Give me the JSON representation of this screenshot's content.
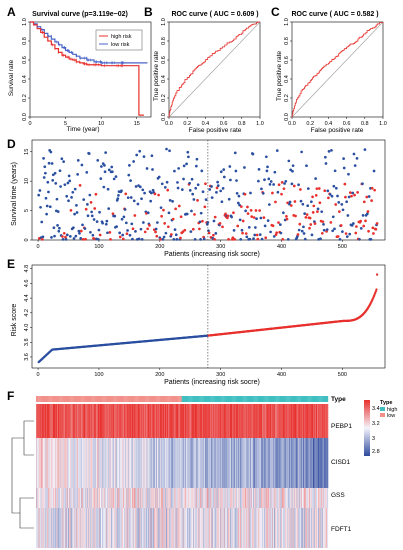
{
  "colors": {
    "high": "#e8302d",
    "low": "#2a4fa0",
    "km_low": "#4a63c8",
    "roc": "#e8302d",
    "diag": "#9a9a9a",
    "heat_high": "#e8302d",
    "heat_mid": "#f4f4fb",
    "heat_low": "#2e4a9c",
    "type_high": "#40bfc1",
    "type_low": "#f2908a",
    "cutoff": "#333333"
  },
  "chart_data": [
    {
      "panel_label": "A",
      "type": "line",
      "title": "Survival curve (p=3.119e−02)",
      "xlabel": "Time (year)",
      "ylabel": "Survival rate",
      "xlim": [
        0,
        17
      ],
      "ylim": [
        0,
        1
      ],
      "x_ticks": [
        "0",
        "5",
        "10",
        "15"
      ],
      "y_ticks": [
        "0.0",
        "0.2",
        "0.4",
        "0.6",
        "0.8",
        "1.0"
      ],
      "legend": [
        "high risk",
        "low risk"
      ],
      "legend_position": "top-right",
      "series": [
        {
          "name": "high risk",
          "x": [
            0,
            0.5,
            1,
            1.5,
            2,
            2.5,
            3,
            3.5,
            4,
            4.5,
            5,
            5.5,
            6,
            6.5,
            7,
            7.5,
            8,
            8.5,
            9,
            10,
            11,
            12,
            13,
            14,
            15,
            15.3,
            15.3,
            16
          ],
          "y": [
            1.0,
            0.97,
            0.93,
            0.89,
            0.84,
            0.8,
            0.76,
            0.72,
            0.68,
            0.65,
            0.63,
            0.61,
            0.6,
            0.58,
            0.57,
            0.56,
            0.55,
            0.55,
            0.55,
            0.54,
            0.54,
            0.54,
            0.54,
            0.54,
            0.54,
            0.54,
            0.02,
            0.02
          ]
        },
        {
          "name": "low risk",
          "x": [
            0,
            0.5,
            1,
            1.5,
            2,
            2.5,
            3,
            3.5,
            4,
            4.5,
            5,
            5.5,
            6,
            6.5,
            7,
            8,
            9,
            10,
            11,
            12,
            13,
            14,
            16.5
          ],
          "y": [
            1.0,
            0.98,
            0.95,
            0.92,
            0.88,
            0.85,
            0.82,
            0.79,
            0.76,
            0.73,
            0.7,
            0.68,
            0.66,
            0.64,
            0.62,
            0.6,
            0.58,
            0.57,
            0.57,
            0.57,
            0.57,
            0.57,
            0.57
          ]
        }
      ]
    },
    {
      "panel_label": "B",
      "type": "line",
      "title": "ROC curve ( AUC =  0.609 )",
      "xlabel": "False positive rate",
      "ylabel": "True positive rate",
      "xlim": [
        0,
        1
      ],
      "ylim": [
        0,
        1
      ],
      "x_ticks": [
        "0.0",
        "0.2",
        "0.4",
        "0.6",
        "0.8",
        "1.0"
      ],
      "y_ticks": [
        "0.0",
        "0.2",
        "0.4",
        "0.6",
        "0.8",
        "1.0"
      ],
      "series": [
        {
          "x": [
            0,
            0.02,
            0.05,
            0.1,
            0.15,
            0.2,
            0.25,
            0.3,
            0.35,
            0.4,
            0.45,
            0.5,
            0.55,
            0.6,
            0.65,
            0.7,
            0.75,
            0.8,
            0.85,
            0.9,
            0.95,
            1.0
          ],
          "y": [
            0,
            0.08,
            0.18,
            0.27,
            0.34,
            0.4,
            0.45,
            0.5,
            0.55,
            0.59,
            0.63,
            0.67,
            0.7,
            0.73,
            0.77,
            0.8,
            0.84,
            0.88,
            0.92,
            0.95,
            0.98,
            1.0
          ]
        }
      ]
    },
    {
      "panel_label": "C",
      "type": "line",
      "title": "ROC curve ( AUC =  0.582 )",
      "xlabel": "False positive rate",
      "ylabel": "True positive rate",
      "xlim": [
        0,
        1
      ],
      "ylim": [
        0,
        1
      ],
      "x_ticks": [
        "0.0",
        "0.2",
        "0.4",
        "0.6",
        "0.8",
        "1.0"
      ],
      "y_ticks": [
        "0.0",
        "0.2",
        "0.4",
        "0.6",
        "0.8",
        "1.0"
      ],
      "series": [
        {
          "x": [
            0,
            0.02,
            0.05,
            0.1,
            0.15,
            0.2,
            0.25,
            0.3,
            0.35,
            0.4,
            0.45,
            0.5,
            0.55,
            0.6,
            0.65,
            0.7,
            0.75,
            0.8,
            0.85,
            0.9,
            0.95,
            1.0
          ],
          "y": [
            0,
            0.07,
            0.16,
            0.25,
            0.31,
            0.37,
            0.42,
            0.47,
            0.52,
            0.56,
            0.6,
            0.64,
            0.68,
            0.72,
            0.76,
            0.79,
            0.83,
            0.87,
            0.91,
            0.94,
            0.97,
            1.0
          ]
        }
      ]
    },
    {
      "panel_label": "D",
      "type": "scatter",
      "ylabel": "Survival time (years)",
      "xlabel": "Patients (increasing risk socre)",
      "xlim": [
        -10,
        570
      ],
      "ylim": [
        0,
        17
      ],
      "x_ticks": [
        "0",
        "100",
        "200",
        "300",
        "400",
        "500"
      ],
      "y_ticks": [
        "0",
        "5",
        "10",
        "15"
      ],
      "cutoff_x": 279,
      "n_patients": 557
    },
    {
      "panel_label": "E",
      "type": "scatter",
      "ylabel": "Risk score",
      "xlabel": "Patients (increasing risk socre)",
      "xlim": [
        -10,
        570
      ],
      "ylim": [
        3.45,
        4.85
      ],
      "x_ticks": [
        "0",
        "100",
        "200",
        "300",
        "400",
        "500"
      ],
      "y_ticks": [
        "3.6",
        "3.8",
        "4.0",
        "4.2",
        "4.4",
        "4.6",
        "4.8"
      ],
      "cutoff_x": 279,
      "n_patients": 557
    },
    {
      "panel_label": "F",
      "type": "heatmap",
      "rows": [
        "PEBP1",
        "CISD1",
        "GSS",
        "FDFT1"
      ],
      "annotation_title": "Type",
      "annotation_legend_title": "Type",
      "annotation_legend": [
        "high",
        "low"
      ],
      "color_legend_ticks": [
        "3.4",
        "3.2",
        "3",
        "2.8"
      ],
      "n_columns": 557,
      "n_low": 278
    }
  ]
}
